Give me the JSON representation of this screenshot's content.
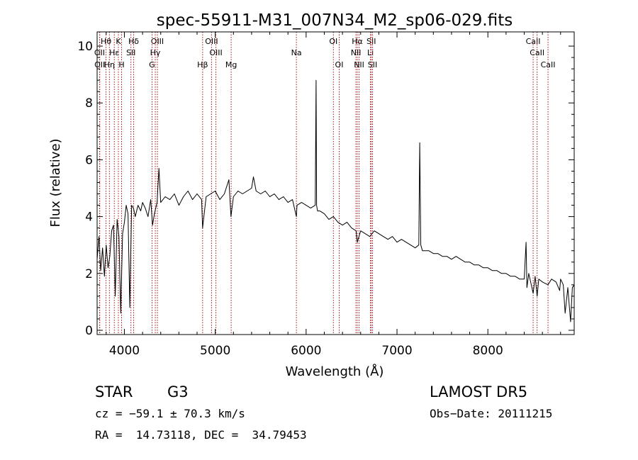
{
  "chart_data": {
    "type": "line",
    "title": "spec-55911-M31_007N34_M2_sp06-029.fits",
    "xlabel": "Wavelength (Å)",
    "ylabel": "Flux (relative)",
    "xlim": [
      3700,
      8950
    ],
    "ylim": [
      -0.15,
      10.5
    ],
    "xticks": [
      4000,
      5000,
      6000,
      7000,
      8000
    ],
    "yticks": [
      0,
      2,
      4,
      6,
      8,
      10
    ],
    "grid": false,
    "series": [
      {
        "x": [
          3700,
          3720,
          3740,
          3760,
          3780,
          3800,
          3820,
          3840,
          3860,
          3880,
          3900,
          3920,
          3940,
          3960,
          3980,
          4000,
          4020,
          4040,
          4060,
          4080,
          4100,
          4120,
          4150,
          4180,
          4200,
          4230,
          4260,
          4290,
          4310,
          4330,
          4360,
          4380,
          4400,
          4450,
          4500,
          4550,
          4600,
          4650,
          4700,
          4750,
          4800,
          4850,
          4861,
          4900,
          4950,
          5000,
          5050,
          5100,
          5150,
          5173,
          5200,
          5250,
          5300,
          5350,
          5400,
          5420,
          5450,
          5500,
          5550,
          5600,
          5650,
          5700,
          5750,
          5800,
          5850,
          5893,
          5900,
          5950,
          6000,
          6050,
          6100,
          6110,
          6115,
          6125,
          6150,
          6200,
          6250,
          6300,
          6350,
          6400,
          6450,
          6500,
          6550,
          6563,
          6600,
          6650,
          6700,
          6750,
          6800,
          6850,
          6900,
          6950,
          7000,
          7050,
          7100,
          7150,
          7200,
          7240,
          7250,
          7262,
          7280,
          7300,
          7350,
          7400,
          7450,
          7500,
          7550,
          7600,
          7650,
          7700,
          7750,
          7800,
          7850,
          7900,
          7950,
          8000,
          8050,
          8100,
          8150,
          8200,
          8250,
          8300,
          8350,
          8400,
          8420,
          8430,
          8450,
          8498,
          8520,
          8542,
          8560,
          8600,
          8662,
          8700,
          8750,
          8790,
          8800,
          8830,
          8850,
          8880,
          8910,
          8930,
          8950
        ],
        "y": [
          2.5,
          3.3,
          2.1,
          2.9,
          1.9,
          3.0,
          2.2,
          2.6,
          3.5,
          3.7,
          1.2,
          3.9,
          3.3,
          0.6,
          3.4,
          3.8,
          4.4,
          4.1,
          0.8,
          4.4,
          4.3,
          4.0,
          4.4,
          4.2,
          4.5,
          4.3,
          4.0,
          4.6,
          3.7,
          4.1,
          4.5,
          5.7,
          4.5,
          4.7,
          4.6,
          4.8,
          4.4,
          4.7,
          4.9,
          4.6,
          4.8,
          4.6,
          3.6,
          4.7,
          4.8,
          4.9,
          4.6,
          4.8,
          5.3,
          4.0,
          4.7,
          4.9,
          4.8,
          4.9,
          5.0,
          5.4,
          4.9,
          4.8,
          4.9,
          4.7,
          4.8,
          4.6,
          4.7,
          4.5,
          4.6,
          4.0,
          4.4,
          4.5,
          4.4,
          4.3,
          4.4,
          8.8,
          4.4,
          4.2,
          4.2,
          4.1,
          3.9,
          4.0,
          3.8,
          3.7,
          3.8,
          3.6,
          3.5,
          3.1,
          3.5,
          3.4,
          3.3,
          3.5,
          3.4,
          3.3,
          3.2,
          3.3,
          3.1,
          3.2,
          3.1,
          3.0,
          2.9,
          3.0,
          6.6,
          3.0,
          2.8,
          2.8,
          2.8,
          2.7,
          2.7,
          2.6,
          2.6,
          2.5,
          2.6,
          2.5,
          2.4,
          2.4,
          2.3,
          2.3,
          2.2,
          2.2,
          2.1,
          2.1,
          2.0,
          2.0,
          1.9,
          1.9,
          1.8,
          1.8,
          3.1,
          1.5,
          2.0,
          1.3,
          1.9,
          1.2,
          1.8,
          1.7,
          1.6,
          1.8,
          1.7,
          1.4,
          1.8,
          1.6,
          0.6,
          1.5,
          0.3,
          1.5,
          1.6
        ]
      }
    ],
    "line_marks": [
      {
        "label": "Hθ",
        "x": 3798,
        "row": 0
      },
      {
        "label": "K",
        "x": 3934,
        "row": 0
      },
      {
        "label": "Hδ",
        "x": 4102,
        "row": 0
      },
      {
        "label": "OIII",
        "x": 4363,
        "row": 0
      },
      {
        "label": "OIII",
        "x": 4959,
        "row": 0
      },
      {
        "label": "OI",
        "x": 6300,
        "row": 0
      },
      {
        "label": "Hα",
        "x": 6563,
        "row": 0
      },
      {
        "label": "SII",
        "x": 6717,
        "row": 0
      },
      {
        "label": "CaII",
        "x": 8498,
        "row": 0
      },
      {
        "label": "OII",
        "x": 3727,
        "row": 1
      },
      {
        "label": "Hε",
        "x": 3889,
        "row": 1
      },
      {
        "label": "SII",
        "x": 4072,
        "row": 1
      },
      {
        "label": "Hγ",
        "x": 4340,
        "row": 1
      },
      {
        "label": "OIII",
        "x": 5007,
        "row": 1
      },
      {
        "label": "NII",
        "x": 6548,
        "row": 1
      },
      {
        "label": "Li",
        "x": 6708,
        "row": 1
      },
      {
        "label": "CaII",
        "x": 8542,
        "row": 1
      },
      {
        "label": "Na",
        "x": 5893,
        "row": 1
      },
      {
        "label": "OII",
        "x": 3729,
        "row": 2
      },
      {
        "label": "Hη",
        "x": 3835,
        "row": 2
      },
      {
        "label": "H",
        "x": 3969,
        "row": 2
      },
      {
        "label": "G",
        "x": 4304,
        "row": 2
      },
      {
        "label": "Hβ",
        "x": 4861,
        "row": 2
      },
      {
        "label": "Mg",
        "x": 5175,
        "row": 2
      },
      {
        "label": "OI",
        "x": 6364,
        "row": 2
      },
      {
        "label": "NII",
        "x": 6583,
        "row": 2
      },
      {
        "label": "SII",
        "x": 6731,
        "row": 2
      },
      {
        "label": "CaII",
        "x": 8662,
        "row": 2
      }
    ]
  },
  "info": {
    "object_type": "STAR",
    "subclass": "G3",
    "survey": "LAMOST DR5",
    "cz_text": "cz = −59.1 ± 70.3 km/s",
    "obs_date_text": "Obs−Date: 20111215",
    "radec_text": "RA =  14.73118, DEC =  34.79453"
  }
}
